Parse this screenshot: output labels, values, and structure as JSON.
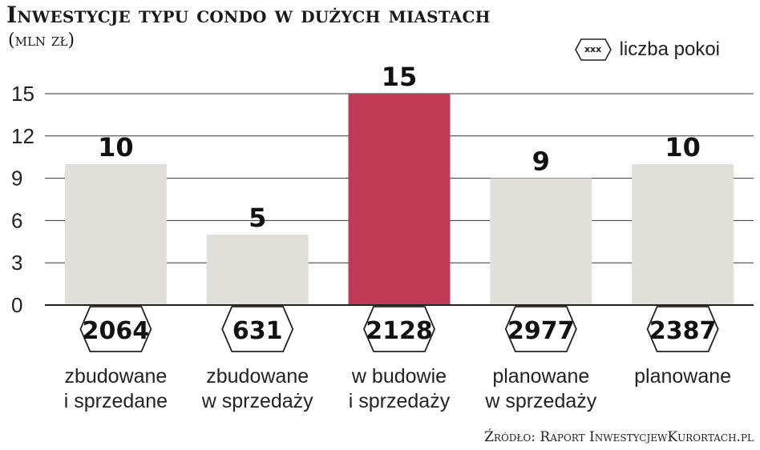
{
  "chart_data": {
    "type": "bar",
    "title": "Inwestycje typu condo w dużych miastach",
    "subtitle": "(mln zł)",
    "categories": [
      [
        "zbudowane",
        "i sprzedane"
      ],
      [
        "zbudowane",
        "w sprzedaży"
      ],
      [
        "w budowie",
        "i sprzedaży"
      ],
      [
        "planowane",
        "w sprzedaży"
      ],
      [
        "planowane"
      ]
    ],
    "values": [
      10,
      5,
      15,
      9,
      10
    ],
    "value_labels": [
      "10",
      "5",
      "15",
      "9",
      "10"
    ],
    "rooms": [
      "2064",
      "631",
      "2128",
      "2977",
      "2387"
    ],
    "yticks": [
      0,
      3,
      6,
      9,
      12,
      15
    ],
    "ylim": [
      0,
      15
    ],
    "grid": true,
    "bar_colors": [
      "#e0dfd9",
      "#e0dfd9",
      "#be3a55",
      "#e0dfd9",
      "#e0dfd9"
    ],
    "legend": {
      "symbol": "xxx",
      "label": "liczba pokoi",
      "placement": "top-right"
    },
    "source": "Źródło: Raport InwestycjewKurortach.pl"
  }
}
